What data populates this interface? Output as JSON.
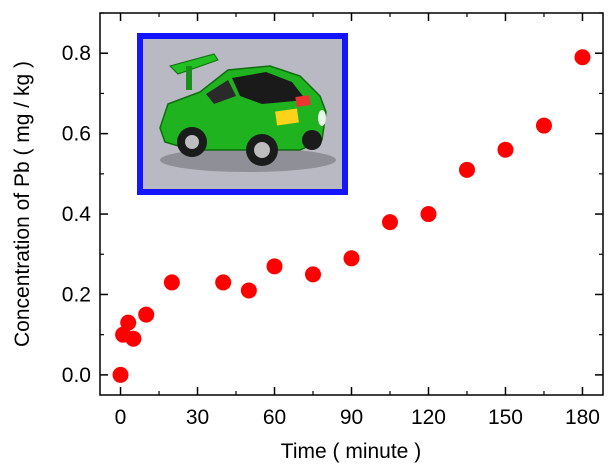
{
  "chart_data": {
    "type": "scatter",
    "title": "",
    "xlabel": "Time ( minute )",
    "ylabel": "Concentration of Pb ( mg / kg )",
    "xlim": [
      -8,
      188
    ],
    "ylim": [
      -0.05,
      0.9
    ],
    "xticks": [
      0,
      30,
      60,
      90,
      120,
      150,
      180
    ],
    "xtick_labels": [
      "0",
      "30",
      "60",
      "90",
      "120",
      "150",
      "180"
    ],
    "yticks": [
      0.0,
      0.2,
      0.4,
      0.6,
      0.8
    ],
    "ytick_labels": [
      "0.0",
      "0.2",
      "0.4",
      "0.6",
      "0.8"
    ],
    "grid": false,
    "legend": "none",
    "marker_color": "#ff0000",
    "series": [
      {
        "x": [
          0,
          1,
          3,
          5,
          10,
          20,
          40,
          50,
          60,
          75,
          90,
          105,
          120,
          135,
          150,
          165,
          180
        ],
        "y": [
          0.0,
          0.1,
          0.13,
          0.09,
          0.15,
          0.23,
          0.23,
          0.21,
          0.27,
          0.25,
          0.29,
          0.38,
          0.4,
          0.51,
          0.56,
          0.62,
          0.79
        ]
      }
    ],
    "inset": {
      "image": "green-toy-car-photo",
      "frame_color": "#1414ff"
    }
  }
}
